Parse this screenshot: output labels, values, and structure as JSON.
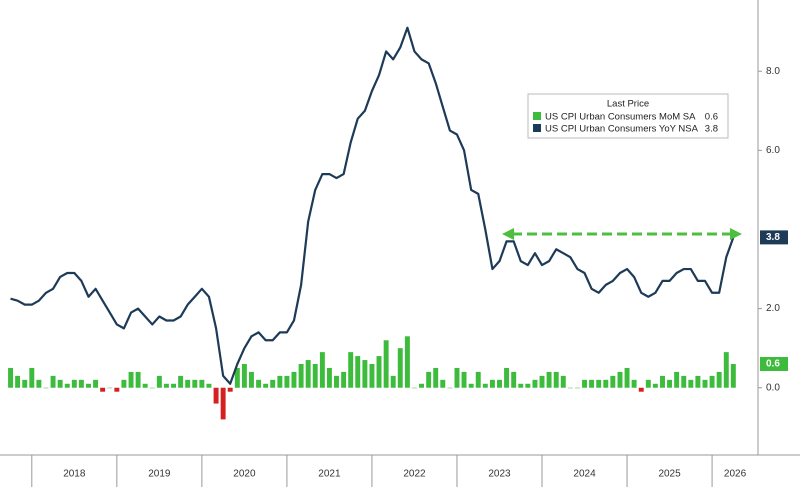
{
  "chart_data": {
    "type": "bar_line",
    "legend_title": "Last Price",
    "legend_position": "upper right",
    "x": [
      2017.75,
      2017.833,
      2017.917,
      2018.0,
      2018.083,
      2018.167,
      2018.25,
      2018.333,
      2018.417,
      2018.5,
      2018.583,
      2018.667,
      2018.75,
      2018.833,
      2018.917,
      2019.0,
      2019.083,
      2019.167,
      2019.25,
      2019.333,
      2019.417,
      2019.5,
      2019.583,
      2019.667,
      2019.75,
      2019.833,
      2019.917,
      2020.0,
      2020.083,
      2020.167,
      2020.25,
      2020.333,
      2020.417,
      2020.5,
      2020.583,
      2020.667,
      2020.75,
      2020.833,
      2020.917,
      2021.0,
      2021.083,
      2021.167,
      2021.25,
      2021.333,
      2021.417,
      2021.5,
      2021.583,
      2021.667,
      2021.75,
      2021.833,
      2021.917,
      2022.0,
      2022.083,
      2022.167,
      2022.25,
      2022.333,
      2022.417,
      2022.5,
      2022.583,
      2022.667,
      2022.75,
      2022.833,
      2022.917,
      2023.0,
      2023.083,
      2023.167,
      2023.25,
      2023.333,
      2023.417,
      2023.5,
      2023.583,
      2023.667,
      2023.75,
      2023.833,
      2023.917,
      2024.0,
      2024.083,
      2024.167,
      2024.25,
      2024.333,
      2024.417,
      2024.5,
      2024.583,
      2024.667,
      2024.75,
      2024.833,
      2024.917,
      2025.0,
      2025.083,
      2025.167,
      2025.25,
      2025.333,
      2025.417,
      2025.5,
      2025.583,
      2025.667,
      2025.75,
      2025.833,
      2025.917,
      2026.0,
      2026.083,
      2026.167,
      2026.25
    ],
    "series": [
      {
        "name": "US CPI Urban Consumers MoM SA",
        "type": "bar",
        "color": "#3dbb3d",
        "negative_color": "#d42020",
        "values": [
          0.5,
          0.3,
          0.2,
          0.5,
          0.2,
          0.0,
          0.3,
          0.2,
          0.1,
          0.2,
          0.2,
          0.1,
          0.2,
          -0.1,
          0.0,
          -0.1,
          0.2,
          0.4,
          0.4,
          0.1,
          0.0,
          0.3,
          0.1,
          0.1,
          0.3,
          0.2,
          0.2,
          0.2,
          0.1,
          -0.4,
          -0.8,
          -0.1,
          0.5,
          0.6,
          0.4,
          0.2,
          0.1,
          0.2,
          0.3,
          0.3,
          0.4,
          0.6,
          0.7,
          0.6,
          0.9,
          0.5,
          0.3,
          0.4,
          0.9,
          0.8,
          0.7,
          0.6,
          0.8,
          1.2,
          0.3,
          1.0,
          1.3,
          0.0,
          0.1,
          0.4,
          0.5,
          0.2,
          0.0,
          0.5,
          0.4,
          0.1,
          0.4,
          0.1,
          0.2,
          0.2,
          0.5,
          0.4,
          0.1,
          0.1,
          0.2,
          0.3,
          0.4,
          0.4,
          0.3,
          0.0,
          0.0,
          0.2,
          0.2,
          0.2,
          0.2,
          0.3,
          0.4,
          0.5,
          0.2,
          -0.1,
          0.2,
          0.1,
          0.3,
          0.2,
          0.4,
          0.3,
          0.2,
          0.3,
          0.2,
          0.3,
          0.4,
          0.9,
          0.6
        ]
      },
      {
        "name": "US CPI Urban Consumers YoY NSA",
        "type": "line",
        "color": "#1d3a57",
        "values": [
          2.25,
          2.2,
          2.1,
          2.1,
          2.2,
          2.4,
          2.5,
          2.8,
          2.9,
          2.9,
          2.7,
          2.3,
          2.5,
          2.2,
          1.9,
          1.6,
          1.5,
          1.9,
          2.0,
          1.8,
          1.6,
          1.8,
          1.7,
          1.7,
          1.8,
          2.1,
          2.3,
          2.5,
          2.3,
          1.5,
          0.3,
          0.1,
          0.6,
          1.0,
          1.3,
          1.4,
          1.2,
          1.2,
          1.4,
          1.4,
          1.7,
          2.6,
          4.2,
          5.0,
          5.4,
          5.4,
          5.3,
          5.4,
          6.2,
          6.8,
          7.0,
          7.5,
          7.9,
          8.5,
          8.3,
          8.6,
          9.1,
          8.5,
          8.3,
          8.2,
          7.7,
          7.1,
          6.5,
          6.4,
          6.0,
          5.0,
          4.9,
          4.0,
          3.0,
          3.2,
          3.7,
          3.7,
          3.2,
          3.1,
          3.4,
          3.1,
          3.2,
          3.5,
          3.4,
          3.3,
          3.0,
          2.9,
          2.5,
          2.4,
          2.6,
          2.7,
          2.9,
          3.0,
          2.8,
          2.4,
          2.3,
          2.4,
          2.7,
          2.7,
          2.9,
          3.0,
          3.0,
          2.7,
          2.7,
          2.4,
          2.4,
          3.3,
          3.8
        ]
      }
    ],
    "xlim": [
      2017.72,
      2026.54
    ],
    "xticks": [
      2018,
      2019,
      2020,
      2021,
      2022,
      2023,
      2024,
      2025,
      2026
    ],
    "ylim": [
      -1.7,
      9.8
    ],
    "yticks": [
      {
        "value": 0,
        "label": "0.0"
      },
      {
        "value": 2,
        "label": "2.0"
      },
      {
        "value": 6,
        "label": "6.0"
      },
      {
        "value": 8,
        "label": "8.0"
      }
    ],
    "grid": false
  }
}
